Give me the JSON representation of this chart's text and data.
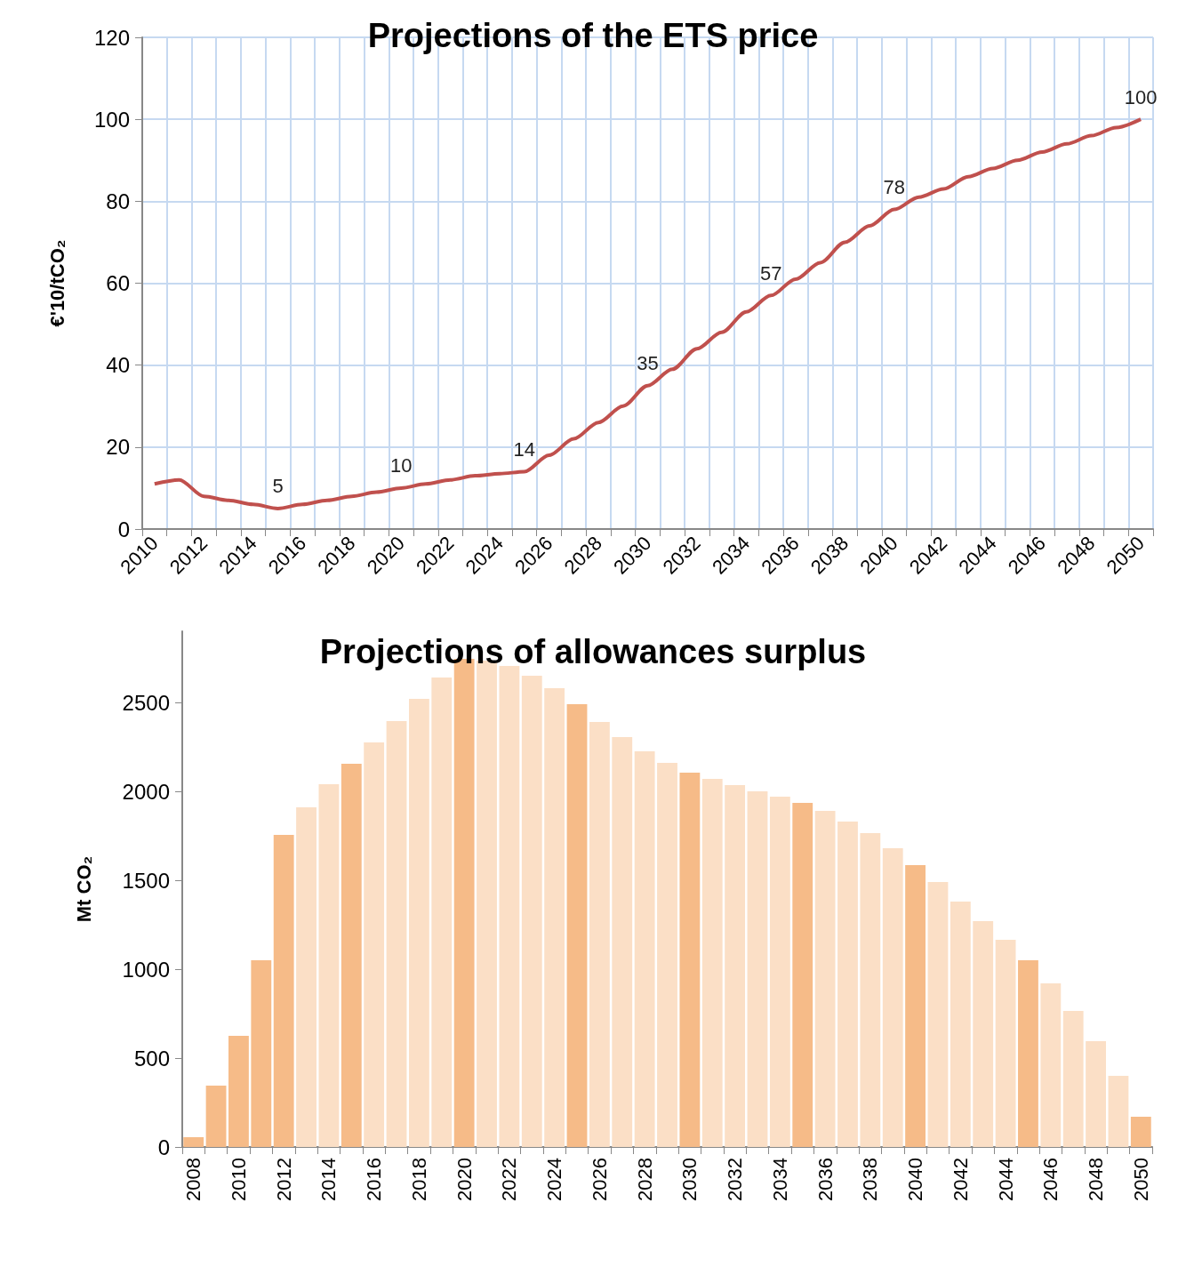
{
  "chart_data": [
    {
      "type": "line",
      "title": "Projections of the ETS price",
      "ylabel": "€'10/tCO₂",
      "categories": [
        "2010",
        null,
        "2012",
        null,
        "2014",
        null,
        "2016",
        null,
        "2018",
        null,
        "2020",
        null,
        "2022",
        null,
        "2024",
        null,
        "2026",
        null,
        "2028",
        null,
        "2030",
        null,
        "2032",
        null,
        "2034",
        null,
        "2036",
        null,
        "2038",
        null,
        "2040",
        null,
        "2042",
        null,
        "2044",
        null,
        "2046",
        null,
        "2048",
        null,
        "2050"
      ],
      "series": [
        {
          "color": "#c0504d",
          "values": [
            11,
            12,
            8,
            7,
            6,
            5,
            6,
            7,
            8,
            9,
            10,
            11,
            12,
            13,
            13.5,
            14,
            18,
            22,
            26,
            30,
            35,
            39,
            44,
            48,
            53,
            57,
            61,
            65,
            70,
            74,
            78,
            81,
            83,
            86,
            88,
            90,
            92,
            94,
            96,
            98,
            100
          ],
          "value_labels": [
            null,
            null,
            null,
            null,
            null,
            "5",
            null,
            null,
            null,
            null,
            "10",
            null,
            null,
            null,
            null,
            "14",
            null,
            null,
            null,
            null,
            "35",
            null,
            null,
            null,
            null,
            "57",
            null,
            null,
            null,
            null,
            "78",
            null,
            null,
            null,
            null,
            null,
            null,
            null,
            null,
            null,
            "100"
          ]
        }
      ],
      "ylim": [
        0,
        120
      ],
      "yticks": [
        0,
        20,
        40,
        60,
        80,
        100,
        120
      ],
      "grid": true,
      "marker": "none"
    },
    {
      "type": "bar",
      "title": "Projections of allowances surplus",
      "ylabel": "Mt CO₂",
      "categories": [
        "2008",
        null,
        "2010",
        null,
        "2012",
        null,
        "2014",
        null,
        "2016",
        null,
        "2018",
        null,
        "2020",
        null,
        "2022",
        null,
        "2024",
        null,
        "2026",
        null,
        "2028",
        null,
        "2030",
        null,
        "2032",
        null,
        "2034",
        null,
        "2036",
        null,
        "2038",
        null,
        "2040",
        null,
        "2042",
        null,
        "2044",
        null,
        "2046",
        null,
        "2048",
        null,
        "2050"
      ],
      "values": [
        55,
        345,
        625,
        1050,
        1755,
        1910,
        2040,
        2155,
        2275,
        2395,
        2520,
        2640,
        2745,
        2735,
        2705,
        2650,
        2580,
        2490,
        2390,
        2305,
        2225,
        2160,
        2105,
        2070,
        2035,
        2000,
        1970,
        1935,
        1890,
        1830,
        1765,
        1680,
        1585,
        1490,
        1380,
        1270,
        1165,
        1050,
        920,
        765,
        595,
        400,
        170
      ],
      "colors": [
        "#f6bb88",
        "#f6bb88",
        "#f6bb88",
        "#f6bb88",
        "#f6bb88",
        "#fbdfc6",
        "#fbdfc6",
        "#f6bb88",
        "#fbdfc6",
        "#fbdfc6",
        "#fbdfc6",
        "#fbdfc6",
        "#f6bb88",
        "#fbdfc6",
        "#fbdfc6",
        "#fbdfc6",
        "#fbdfc6",
        "#f6bb88",
        "#fbdfc6",
        "#fbdfc6",
        "#fbdfc6",
        "#fbdfc6",
        "#f6bb88",
        "#fbdfc6",
        "#fbdfc6",
        "#fbdfc6",
        "#fbdfc6",
        "#f6bb88",
        "#fbdfc6",
        "#fbdfc6",
        "#fbdfc6",
        "#fbdfc6",
        "#f6bb88",
        "#fbdfc6",
        "#fbdfc6",
        "#fbdfc6",
        "#fbdfc6",
        "#f6bb88",
        "#fbdfc6",
        "#fbdfc6",
        "#fbdfc6",
        "#fbdfc6",
        "#f6bb88"
      ],
      "ylim": [
        0,
        2900
      ],
      "yticks": [
        0,
        500,
        1000,
        1500,
        2000,
        2500
      ]
    }
  ]
}
